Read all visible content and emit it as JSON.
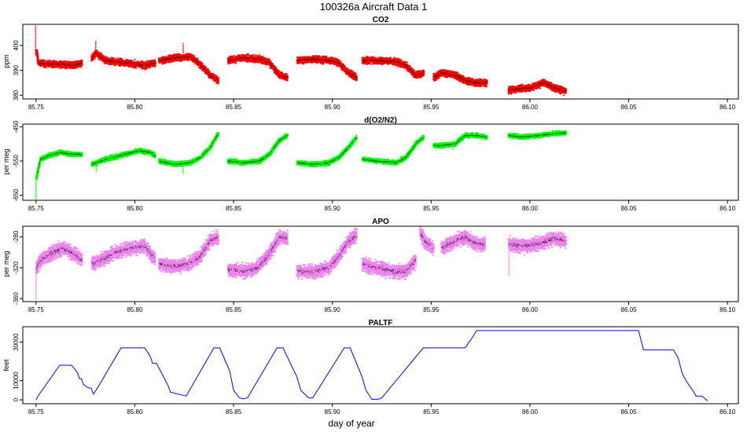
{
  "figure": {
    "title": "100326a   Aircraft Data 1",
    "xlabel": "day of year"
  },
  "chart_data": [
    {
      "type": "scatter",
      "title": "CO2",
      "ylabel": "ppm",
      "color": "#ff0000",
      "xlim": [
        85.7433,
        86.1055
      ],
      "ylim": [
        378.5,
        408.5
      ],
      "x_ticks": [
        85.75,
        85.8,
        85.85,
        85.9,
        85.95,
        86.0,
        86.05,
        86.1
      ],
      "x_tick_labels": [
        "85.75",
        "85.80",
        "85.85",
        "85.90",
        "85.95",
        "86.00",
        "86.05",
        "86.10"
      ],
      "y_ticks": [
        380,
        390,
        400
      ],
      "y_tick_labels": [
        "380",
        "390",
        "400"
      ],
      "noise": 0.8,
      "segments": [
        {
          "x": [
            85.75,
            85.751,
            85.755,
            85.762,
            85.768,
            85.773
          ],
          "y": [
            398,
            393,
            392.5,
            392.5,
            392,
            393
          ]
        },
        {
          "x": [
            85.778,
            85.78,
            85.785,
            85.795,
            85.805,
            85.81
          ],
          "y": [
            395,
            397,
            394,
            393,
            392,
            393
          ]
        },
        {
          "x": [
            85.812,
            85.82,
            85.828,
            85.832,
            85.838,
            85.842
          ],
          "y": [
            394,
            395,
            395.5,
            393,
            388,
            386
          ]
        },
        {
          "x": [
            85.847,
            85.855,
            85.863,
            85.868,
            85.873,
            85.877
          ],
          "y": [
            394,
            395,
            394.5,
            393,
            388,
            387
          ]
        },
        {
          "x": [
            85.882,
            85.89,
            85.898,
            85.903,
            85.908,
            85.912
          ],
          "y": [
            394,
            394.5,
            394,
            393,
            389,
            387
          ]
        },
        {
          "x": [
            85.915,
            85.922,
            85.932,
            85.937,
            85.942,
            85.946
          ],
          "y": [
            394,
            394,
            393.5,
            392,
            388,
            389
          ]
        },
        {
          "x": [
            85.951,
            85.955,
            85.962,
            85.967,
            85.972,
            85.978
          ],
          "y": [
            387,
            389,
            388,
            386,
            385,
            385
          ]
        },
        {
          "x": [
            85.989,
            85.993,
            86.0,
            86.007,
            86.012,
            86.018
          ],
          "y": [
            382,
            382.5,
            383,
            385,
            383,
            381.5
          ]
        }
      ],
      "spikes": [
        {
          "x": 85.7498,
          "y0": 396,
          "y1": 408
        },
        {
          "x": 85.7802,
          "y0": 396,
          "y1": 402
        },
        {
          "x": 85.8245,
          "y0": 397,
          "y1": 401
        }
      ]
    },
    {
      "type": "scatter",
      "title": "d(O2/N2)",
      "ylabel": "per meg",
      "color": "#00ff00",
      "xlim": [
        85.7433,
        86.1055
      ],
      "ylim": [
        -665,
        -442
      ],
      "x_ticks": [
        85.75,
        85.8,
        85.85,
        85.9,
        85.95,
        86.0,
        86.05,
        86.1
      ],
      "x_tick_labels": [
        "85.75",
        "85.80",
        "85.85",
        "85.90",
        "85.95",
        "86.00",
        "86.05",
        "86.10"
      ],
      "y_ticks": [
        -650,
        -550,
        -450
      ],
      "y_tick_labels": [
        "-650",
        "-550",
        "-450"
      ],
      "noise": 4,
      "segments": [
        {
          "x": [
            85.75,
            85.752,
            85.756,
            85.762,
            85.768,
            85.773
          ],
          "y": [
            -600,
            -545,
            -535,
            -525,
            -530,
            -530
          ]
        },
        {
          "x": [
            85.778,
            85.785,
            85.795,
            85.802,
            85.808,
            85.81
          ],
          "y": [
            -560,
            -545,
            -530,
            -520,
            -525,
            -535
          ]
        },
        {
          "x": [
            85.812,
            85.82,
            85.828,
            85.833,
            85.838,
            85.842
          ],
          "y": [
            -550,
            -560,
            -555,
            -540,
            -510,
            -470
          ]
        },
        {
          "x": [
            85.847,
            85.855,
            85.863,
            85.868,
            85.873,
            85.877
          ],
          "y": [
            -550,
            -555,
            -550,
            -530,
            -490,
            -475
          ]
        },
        {
          "x": [
            85.882,
            85.89,
            85.898,
            85.903,
            85.908,
            85.912
          ],
          "y": [
            -555,
            -560,
            -555,
            -540,
            -510,
            -480
          ]
        },
        {
          "x": [
            85.915,
            85.922,
            85.932,
            85.937,
            85.942,
            85.946
          ],
          "y": [
            -545,
            -550,
            -555,
            -540,
            -500,
            -480
          ]
        },
        {
          "x": [
            85.951,
            85.955,
            85.962,
            85.967,
            85.972,
            85.978
          ],
          "y": [
            -505,
            -505,
            -500,
            -475,
            -475,
            -480
          ]
        },
        {
          "x": [
            85.989,
            85.995,
            86.005,
            86.012,
            86.018
          ],
          "y": [
            -475,
            -480,
            -475,
            -470,
            -468
          ]
        }
      ],
      "spikes": [
        {
          "x": 85.75,
          "y0": -600,
          "y1": -663
        },
        {
          "x": 85.7805,
          "y0": -550,
          "y1": -583
        },
        {
          "x": 85.8245,
          "y0": -560,
          "y1": -588
        },
        {
          "x": 85.961,
          "y0": -500,
          "y1": -518
        }
      ]
    },
    {
      "type": "scatter",
      "title": "APO",
      "ylabel": "per meg",
      "color": "#ee82ee",
      "xlim": [
        85.7433,
        86.1055
      ],
      "ylim": [
        -364,
        -266
      ],
      "x_ticks": [
        85.75,
        85.8,
        85.85,
        85.9,
        85.95,
        86.0,
        86.05,
        86.1
      ],
      "x_tick_labels": [
        "85.75",
        "85.80",
        "85.85",
        "85.90",
        "85.95",
        "86.00",
        "86.05",
        "86.10"
      ],
      "y_ticks": [
        -360,
        -320,
        -280
      ],
      "y_tick_labels": [
        "-360",
        "-320",
        "-280"
      ],
      "noise": 5,
      "segments": [
        {
          "x": [
            85.75,
            85.752,
            85.757,
            85.763,
            85.768,
            85.773
          ],
          "y": [
            -320,
            -310,
            -302,
            -295,
            -300,
            -310
          ]
        },
        {
          "x": [
            85.778,
            85.783,
            85.79,
            85.797,
            85.805,
            85.81
          ],
          "y": [
            -315,
            -310,
            -300,
            -295,
            -292,
            -310
          ]
        },
        {
          "x": [
            85.812,
            85.82,
            85.827,
            85.833,
            85.838,
            85.842
          ],
          "y": [
            -315,
            -318,
            -315,
            -305,
            -285,
            -280
          ]
        },
        {
          "x": [
            85.847,
            85.855,
            85.862,
            85.867,
            85.873,
            85.877
          ],
          "y": [
            -322,
            -325,
            -320,
            -305,
            -280,
            -282
          ]
        },
        {
          "x": [
            85.882,
            85.89,
            85.898,
            85.903,
            85.908,
            85.912
          ],
          "y": [
            -325,
            -325,
            -320,
            -305,
            -285,
            -278
          ]
        },
        {
          "x": [
            85.915,
            85.922,
            85.932,
            85.937,
            85.942
          ],
          "y": [
            -315,
            -320,
            -325,
            -325,
            -310
          ]
        },
        {
          "x": [
            85.9442,
            85.9465,
            85.9485,
            85.951
          ],
          "y": [
            -275,
            -285,
            -290,
            -295
          ]
        },
        {
          "x": [
            85.955,
            85.962,
            85.967,
            85.972,
            85.977
          ],
          "y": [
            -295,
            -285,
            -280,
            -288,
            -290
          ]
        },
        {
          "x": [
            85.989,
            85.996,
            86.005,
            86.012,
            86.018
          ],
          "y": [
            -290,
            -292,
            -288,
            -282,
            -285
          ]
        }
      ],
      "spikes": [
        {
          "x": 85.75,
          "y0": -320,
          "y1": -362
        },
        {
          "x": 85.9895,
          "y0": -300,
          "y1": -330
        }
      ]
    },
    {
      "type": "line",
      "title": "PALTF",
      "ylabel": "feet",
      "color": "#0000ff",
      "xlim": [
        85.7433,
        86.1055
      ],
      "ylim": [
        -2000,
        38000
      ],
      "x_ticks": [
        85.75,
        85.8,
        85.85,
        85.9,
        85.95,
        86.0,
        86.05,
        86.1
      ],
      "x_tick_labels": [
        "85.75",
        "85.80",
        "85.85",
        "85.90",
        "85.95",
        "86.00",
        "86.05",
        "86.10"
      ],
      "y_ticks": [
        0,
        10000,
        30000
      ],
      "y_tick_labels": [
        "0",
        "10000",
        "30000"
      ],
      "x": [
        85.75,
        85.751,
        85.762,
        85.768,
        85.771,
        85.772,
        85.773,
        85.774,
        85.776,
        85.778,
        85.779,
        85.781,
        85.793,
        85.805,
        85.807,
        85.808,
        85.809,
        85.811,
        85.817,
        85.818,
        85.826,
        85.84,
        85.843,
        85.848,
        85.85,
        85.853,
        85.855,
        85.857,
        85.872,
        85.875,
        85.882,
        85.884,
        85.888,
        85.89,
        85.906,
        85.909,
        85.915,
        85.917,
        85.92,
        85.923,
        85.925,
        85.946,
        85.949,
        85.967,
        85.968,
        85.969,
        85.97,
        85.973,
        86.055,
        86.0575,
        86.0725,
        86.075,
        86.077,
        86.079,
        86.081,
        86.083,
        86.084,
        86.087,
        86.09
      ],
      "y": [
        0,
        2000,
        18000,
        18000,
        14000,
        11000,
        11000,
        8000,
        6500,
        6000,
        3000,
        6000,
        27000,
        27000,
        24000,
        22000,
        19000,
        19000,
        7000,
        4000,
        2000,
        27000,
        27000,
        15000,
        5000,
        1000,
        500,
        1000,
        27000,
        27000,
        12000,
        5000,
        1000,
        1000,
        27000,
        27000,
        12000,
        5000,
        300,
        300,
        1000,
        27000,
        27000,
        27000,
        28000,
        30000,
        31000,
        36000,
        36000,
        26000,
        26000,
        22000,
        14000,
        10000,
        7000,
        4000,
        2000,
        2000,
        -500
      ]
    }
  ]
}
